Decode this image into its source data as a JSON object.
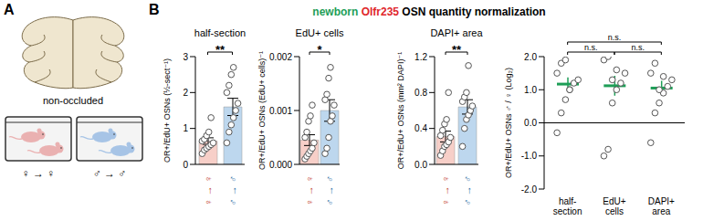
{
  "panel_labels": [
    "A",
    "B"
  ],
  "panel_a": {
    "condition": "non-occluded",
    "groups": [
      "♀ → ♀",
      "♂ → ♂"
    ]
  },
  "header": [
    {
      "text": "newborn",
      "color": "#1e9e57"
    },
    {
      "text": "Olfr235",
      "color": "#e0262b"
    },
    {
      "text": "OSN quantity normalization",
      "color": "#000000"
    }
  ],
  "chart_data": [
    {
      "type": "bar",
      "title": "half-section",
      "y_label": "OR+/EdU+ OSNs (½-sect⁻¹)",
      "categories": [
        "♀ → ♀",
        "♂ → ♂"
      ],
      "values": [
        0.65,
        1.6
      ],
      "error": [
        0.09,
        0.24
      ],
      "colors": [
        "#f7cfc8",
        "#bdd7ee"
      ],
      "points": [
        [
          0.3,
          0.4,
          0.45,
          0.5,
          0.55,
          0.6,
          0.65,
          0.7,
          0.8,
          0.9,
          1.3
        ],
        [
          0.6,
          0.9,
          1.1,
          1.3,
          1.5,
          1.7,
          2.0,
          2.2,
          2.5,
          2.7
        ]
      ],
      "ylim": [
        0,
        3
      ],
      "yticks": [
        0,
        1,
        2,
        3
      ],
      "significance": [
        {
          "from": 0,
          "to": 1,
          "label": "**"
        }
      ]
    },
    {
      "type": "bar",
      "title": "EdU+ cells",
      "y_label": "OR+/EdU+ OSNs (EdU+ cells)⁻¹",
      "categories": [
        "♀ → ♀",
        "♂ → ♂"
      ],
      "values": [
        0.00045,
        0.001
      ],
      "error": [
        0.0001,
        0.0002
      ],
      "colors": [
        "#f7cfc8",
        "#bdd7ee"
      ],
      "points": [
        [
          0.0001,
          0.00015,
          0.0002,
          0.00025,
          0.0003,
          0.0004,
          0.0005,
          0.0006,
          0.0008,
          0.0009,
          0.0011
        ],
        [
          0.0002,
          0.0003,
          0.0005,
          0.0008,
          0.0009,
          0.0011,
          0.0012,
          0.0013,
          0.0016,
          0.0018
        ]
      ],
      "ylim": [
        0,
        0.002
      ],
      "yticks": [
        {
          "value": 0,
          "label": "0.000"
        },
        {
          "value": 0.001,
          "label": "0.001"
        },
        {
          "value": 0.002,
          "label": "0.002"
        }
      ],
      "significance": [
        {
          "from": 0,
          "to": 1,
          "label": "*"
        }
      ]
    },
    {
      "type": "bar",
      "title": "DAPI+ area",
      "y_label": "OR+/EdU+ OSNs (mm² DAPI)⁻¹",
      "categories": [
        "♀ → ♀",
        "♂ → ♂"
      ],
      "values": [
        0.31,
        0.64
      ],
      "error": [
        0.06,
        0.08
      ],
      "colors": [
        "#f7cfc8",
        "#bdd7ee"
      ],
      "points": [
        [
          0.1,
          0.15,
          0.2,
          0.22,
          0.25,
          0.3,
          0.32,
          0.38,
          0.45,
          0.5,
          0.8
        ],
        [
          0.2,
          0.4,
          0.5,
          0.55,
          0.6,
          0.65,
          0.7,
          0.75,
          0.8,
          1.1
        ]
      ],
      "ylim": [
        0,
        1.2
      ],
      "yticks": [
        {
          "value": 0,
          "label": "0.0"
        },
        {
          "value": 0.4,
          "label": "0.4"
        },
        {
          "value": 0.8,
          "label": "0.8"
        },
        {
          "value": 1.2,
          "label": "1.2"
        }
      ],
      "significance": [
        {
          "from": 0,
          "to": 1,
          "label": "**"
        }
      ]
    },
    {
      "type": "scatter",
      "y_label": "OR+/EdU+ OSNs ♂ / ♀ (Log₂)",
      "categories": [
        "half-section",
        "EdU+ cells",
        "DAPI+ area"
      ],
      "values": [
        1.17,
        1.12,
        1.05
      ],
      "error": [
        0.2,
        0.3,
        0.22
      ],
      "color": "#1e9e57",
      "points": [
        [
          -0.3,
          0.3,
          0.7,
          1.0,
          1.2,
          1.3,
          1.5,
          1.8,
          1.9,
          1.0
        ],
        [
          -1.0,
          -0.8,
          0.6,
          1.0,
          1.2,
          1.5,
          1.9,
          2.0,
          1.3,
          1.6
        ],
        [
          -0.6,
          0.3,
          0.6,
          0.9,
          1.1,
          1.3,
          1.5,
          1.8,
          1.0,
          1.4
        ]
      ],
      "ylim": [
        -2,
        2
      ],
      "yticks": [
        {
          "value": -2,
          "label": "-2.0"
        },
        {
          "value": -1,
          "label": "-1.0"
        },
        {
          "value": 0,
          "label": "0.0"
        },
        {
          "value": 1,
          "label": "1.0"
        },
        {
          "value": 2,
          "label": "2.0"
        }
      ],
      "baseline": 0,
      "significance": [
        {
          "from": 0,
          "to": 1,
          "label": "n.s."
        },
        {
          "from": 1,
          "to": 2,
          "label": "n.s."
        },
        {
          "from": 0,
          "to": 2,
          "label": "n.s."
        }
      ]
    }
  ]
}
